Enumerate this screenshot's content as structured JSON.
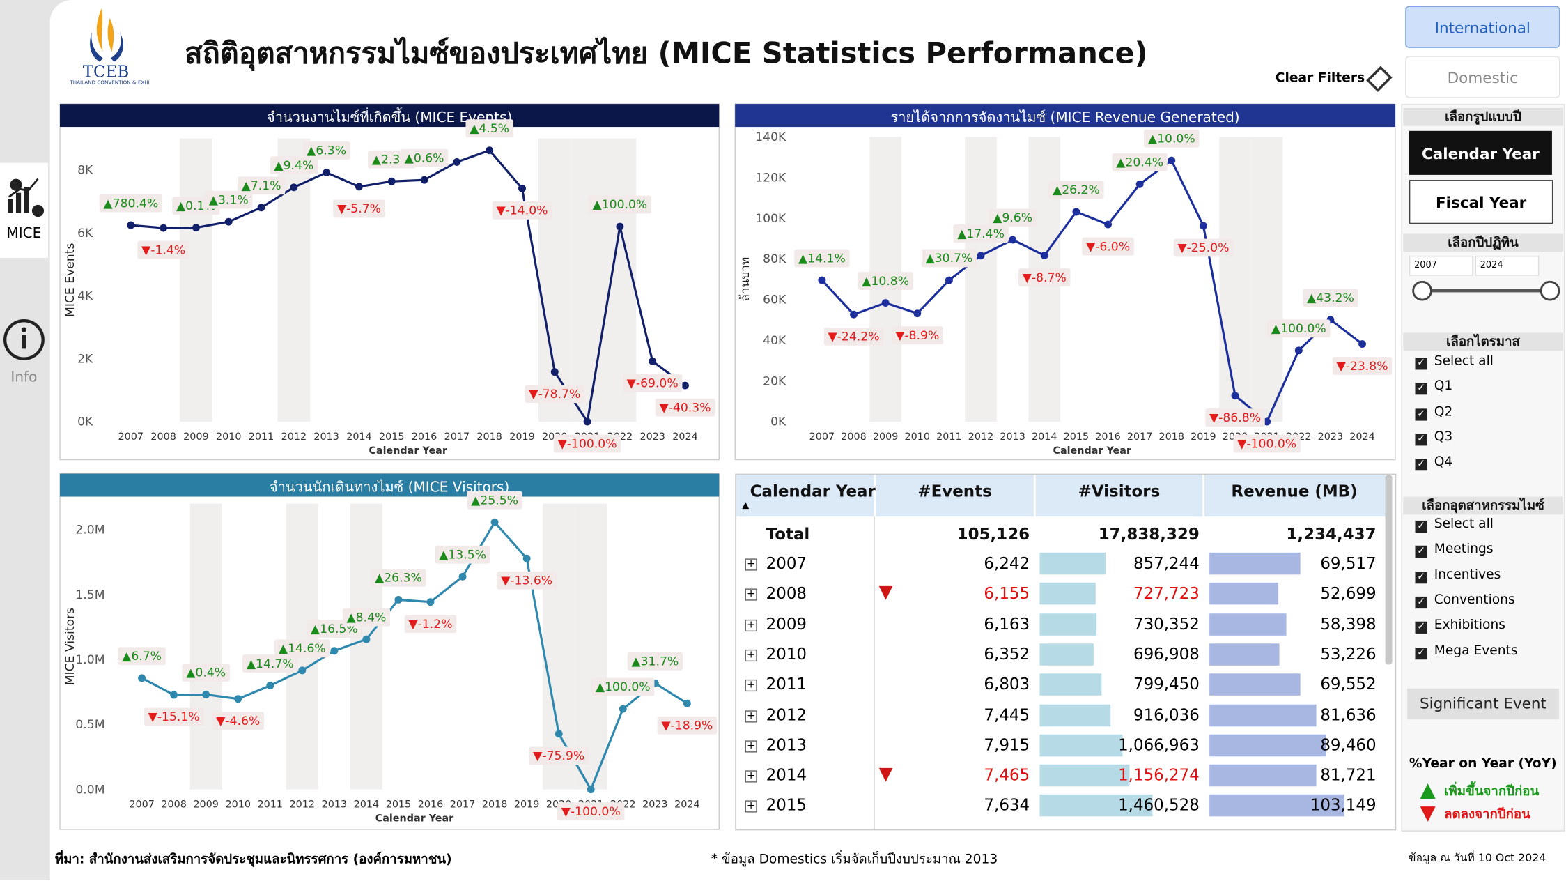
{
  "header": {
    "logo": "TCEB",
    "logo_subtitle": "THAILAND CONVENTION & EXHIBITION BUREAU",
    "title": "สถิติอุตสาหกรรมไมซ์ของประเทศไทย (MICE Statistics Performance)",
    "clear_filters": "Clear Filters"
  },
  "nav": {
    "items": [
      "MICE",
      "Info"
    ]
  },
  "tabs": {
    "active": "International",
    "inactive": "Domestic"
  },
  "chart_data": [
    {
      "type": "line",
      "title": "จำนวนงานไมซ์ที่เกิดขึ้น (MICE Events)",
      "x_label": "Calendar Year",
      "y_label": "MICE Events",
      "color": "#12206a",
      "categories": [
        "2007",
        "2008",
        "2009",
        "2010",
        "2011",
        "2012",
        "2013",
        "2014",
        "2015",
        "2016",
        "2017",
        "2018",
        "2019",
        "2020",
        "2021",
        "2022",
        "2023",
        "2024"
      ],
      "values": [
        6242,
        6155,
        6163,
        6352,
        6803,
        7445,
        7915,
        7465,
        7634,
        7680,
        8250,
        8620,
        7410,
        1580,
        0,
        6200,
        1920,
        1150
      ],
      "annotations": [
        "▲780.4%",
        "▼-1.4%",
        "▲0.1%",
        "▲3.1%",
        "▲7.1%",
        "▲9.4%",
        "▲6.3%",
        "▼-5.7%",
        "▲2.3%",
        "▲0.6%",
        null,
        "▲4.5%",
        "▼-14.0%",
        "▼-78.7%",
        "▼-100.0%",
        "▲100.0%",
        "▼-69.0%",
        "▼-40.3%"
      ],
      "highlight_categories": [
        "2009",
        "2012",
        "2020",
        "2021",
        "2022"
      ],
      "ylim": [
        0,
        9000
      ],
      "yticks": [
        {
          "value": 0,
          "label": "0K"
        },
        {
          "value": 2000,
          "label": "2K"
        },
        {
          "value": 4000,
          "label": "4K"
        },
        {
          "value": 6000,
          "label": "6K"
        },
        {
          "value": 8000,
          "label": "8K"
        }
      ]
    },
    {
      "type": "line",
      "title": "รายได้จากการจัดงานไมซ์ (MICE Revenue Generated)",
      "x_label": "Calendar Year",
      "y_label": "ล้านบาท",
      "color": "#1c2f9c",
      "categories": [
        "2007",
        "2008",
        "2009",
        "2010",
        "2011",
        "2012",
        "2013",
        "2014",
        "2015",
        "2016",
        "2017",
        "2018",
        "2019",
        "2020",
        "2021",
        "2022",
        "2023",
        "2024"
      ],
      "values": [
        69517,
        52699,
        58398,
        53226,
        69552,
        81636,
        89460,
        81721,
        103149,
        96960,
        116740,
        128420,
        96300,
        12800,
        0,
        35000,
        50100,
        38200
      ],
      "annotations": [
        "▲14.1%",
        "▼-24.2%",
        "▲10.8%",
        "▼-8.9%",
        "▲30.7%",
        "▲17.4%",
        "▲9.6%",
        "▼-8.7%",
        "▲26.2%",
        "▼-6.0%",
        "▲20.4%",
        "▲10.0%",
        "▼-25.0%",
        "▼-86.8%",
        "▼-100.0%",
        "▲100.0%",
        "▲43.2%",
        "▼-23.8%"
      ],
      "highlight_categories": [
        "2009",
        "2012",
        "2014",
        "2020",
        "2021"
      ],
      "ylim": [
        0,
        140000
      ],
      "yticks": [
        {
          "value": 0,
          "label": "0K"
        },
        {
          "value": 20000,
          "label": "20K"
        },
        {
          "value": 40000,
          "label": "40K"
        },
        {
          "value": 60000,
          "label": "60K"
        },
        {
          "value": 80000,
          "label": "80K"
        },
        {
          "value": 100000,
          "label": "100K"
        },
        {
          "value": 120000,
          "label": "120K"
        },
        {
          "value": 140000,
          "label": "140K"
        }
      ]
    },
    {
      "type": "line",
      "title": "จำนวนนักเดินทางไมซ์ (MICE Visitors)",
      "x_label": "Calendar Year",
      "y_label": "MICE Visitors",
      "color": "#2f88ad",
      "categories": [
        "2007",
        "2008",
        "2009",
        "2010",
        "2011",
        "2012",
        "2013",
        "2014",
        "2015",
        "2016",
        "2017",
        "2018",
        "2019",
        "2020",
        "2021",
        "2022",
        "2023",
        "2024"
      ],
      "values": [
        857244,
        727723,
        730352,
        696908,
        799450,
        916036,
        1066963,
        1156274,
        1460528,
        1443000,
        1638000,
        2057000,
        1778000,
        428000,
        0,
        620000,
        817000,
        662000
      ],
      "annotations": [
        "▲6.7%",
        "▼-15.1%",
        "▲0.4%",
        "▼-4.6%",
        "▲14.7%",
        "▲14.6%",
        "▲16.5%",
        "▲8.4%",
        "▲26.3%",
        "▼-1.2%",
        "▲13.5%",
        "▲25.5%",
        "▼-13.6%",
        "▼-75.9%",
        "▼-100.0%",
        "▲100.0%",
        "▲31.7%",
        "▼-18.9%"
      ],
      "highlight_categories": [
        "2009",
        "2012",
        "2014",
        "2020",
        "2021"
      ],
      "ylim": [
        0,
        2200000
      ],
      "yticks": [
        {
          "value": 0,
          "label": "0.0M"
        },
        {
          "value": 500000,
          "label": "0.5M"
        },
        {
          "value": 1000000,
          "label": "1.0M"
        },
        {
          "value": 1500000,
          "label": "1.5M"
        },
        {
          "value": 2000000,
          "label": "2.0M"
        }
      ]
    }
  ],
  "table": {
    "columns": [
      "Calendar Year",
      "#Events",
      "#Visitors",
      "Revenue (MB)"
    ],
    "total": {
      "label": "Total",
      "events": "105,126",
      "visitors": "17,838,329",
      "revenue": "1,234,437"
    },
    "rows": [
      {
        "year": "2007",
        "events": "6,242",
        "visitors": "857,244",
        "revenue": "69,517",
        "decline": false
      },
      {
        "year": "2008",
        "events": "6,155",
        "visitors": "727,723",
        "revenue": "52,699",
        "decline": true
      },
      {
        "year": "2009",
        "events": "6,163",
        "visitors": "730,352",
        "revenue": "58,398",
        "decline": false
      },
      {
        "year": "2010",
        "events": "6,352",
        "visitors": "696,908",
        "revenue": "53,226",
        "decline": false
      },
      {
        "year": "2011",
        "events": "6,803",
        "visitors": "799,450",
        "revenue": "69,552",
        "decline": false
      },
      {
        "year": "2012",
        "events": "7,445",
        "visitors": "916,036",
        "revenue": "81,636",
        "decline": false
      },
      {
        "year": "2013",
        "events": "7,915",
        "visitors": "1,066,963",
        "revenue": "89,460",
        "decline": false
      },
      {
        "year": "2014",
        "events": "7,465",
        "visitors": "1,156,274",
        "revenue": "81,721",
        "decline": true
      },
      {
        "year": "2015",
        "events": "7,634",
        "visitors": "1,460,528",
        "revenue": "103,149",
        "decline": false
      }
    ]
  },
  "filters": {
    "year_type": {
      "title": "เลือกรูปแบบปี",
      "active": "Calendar Year",
      "inactive": "Fiscal Year"
    },
    "year_range": {
      "title": "เลือกปีปฏิทิน",
      "from": "2007",
      "to": "2024"
    },
    "quarter": {
      "title": "เลือกไตรมาส",
      "options": [
        "Select all",
        "Q1",
        "Q2",
        "Q3",
        "Q4"
      ]
    },
    "industry": {
      "title": "เลือกอุตสาหกรรมไมซ์",
      "options": [
        "Select all",
        "Meetings",
        "Incentives",
        "Conventions",
        "Exhibitions",
        "Mega Events"
      ]
    },
    "significant_event": "Significant Event"
  },
  "legend": {
    "title": "%Year on Year (YoY)",
    "up": "เพิ่มขึ้นจากปีก่อน",
    "down": "ลดลงจากปีก่อน"
  },
  "footer": {
    "source": "ที่มา: สำนักงานส่งเสริมการจัดประชุมและนิทรรศการ (องค์การมหาชน)",
    "note": "* ข้อมูล Domestics เริ่มจัดเก็บปีงบประมาณ 2013",
    "updated": "ข้อมูล ณ วันที่ 10 Oct 2024"
  }
}
